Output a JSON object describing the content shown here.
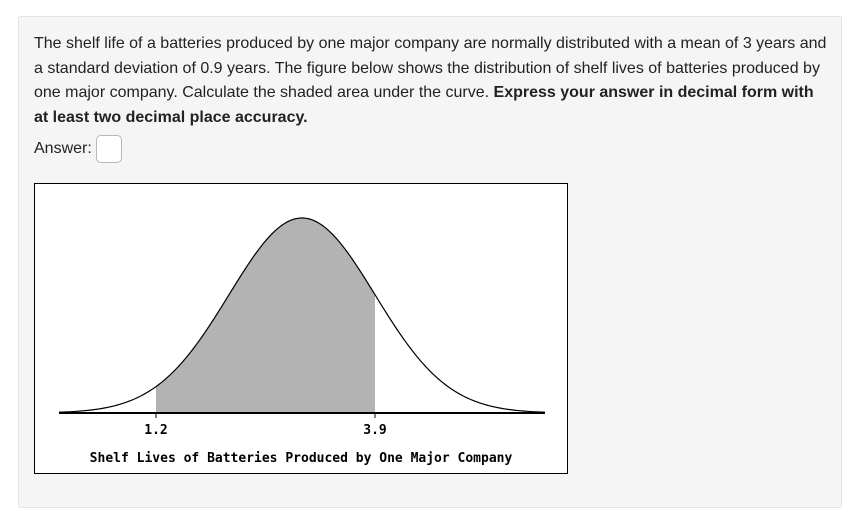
{
  "question": {
    "text_before": "The shelf life of a batteries produced by one major company are normally distributed with a mean of 3 years and a standard deviation of 0.9 years. The figure below shows the distribution of shelf lives of batteries produced by one major company. Calculate the shaded area under the curve. ",
    "text_bold": "Express your answer in decimal form with at least two decimal place accuracy."
  },
  "answer": {
    "label": "Answer:",
    "value": ""
  },
  "chart_data": {
    "type": "area",
    "distribution": "normal",
    "mean": 3,
    "std_dev": 0.9,
    "shaded_from": 1.2,
    "shaded_to": 3.9,
    "tick_labels": [
      "1.2",
      "3.9"
    ],
    "xlabel": "Shelf Lives of Batteries Produced by One Major Company",
    "title": "",
    "ylabel": "",
    "colors": {
      "shade": "#b3b3b3",
      "curve": "#000000"
    }
  }
}
